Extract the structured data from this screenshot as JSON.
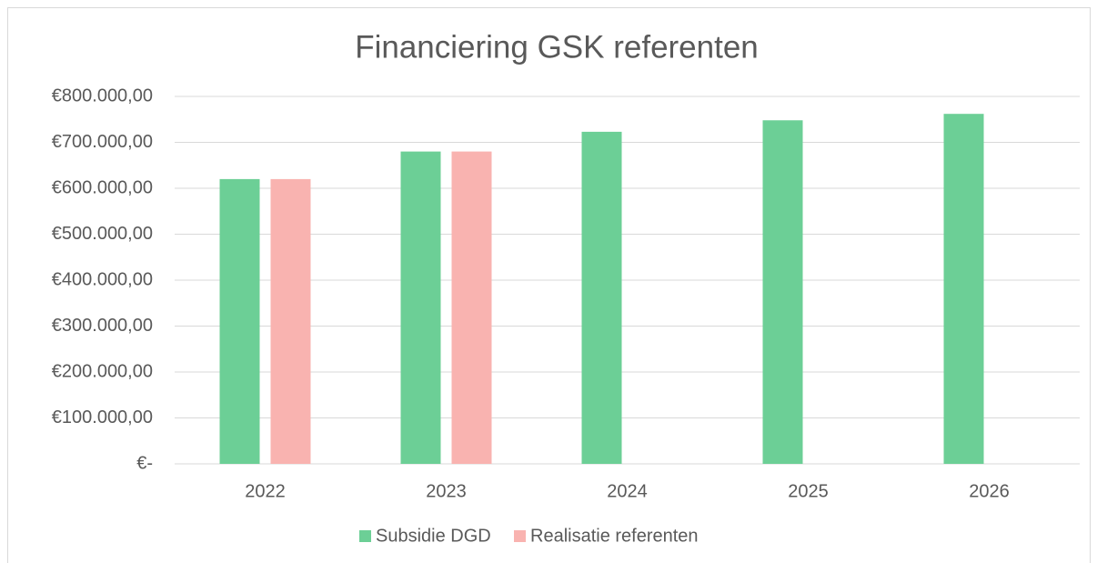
{
  "chart_data": {
    "type": "bar",
    "title": "Financiering GSK referenten",
    "categories": [
      "2022",
      "2023",
      "2024",
      "2025",
      "2026"
    ],
    "series": [
      {
        "name": "Subsidie DGD",
        "color": "#6ccf96",
        "values": [
          620000,
          680000,
          723000,
          748000,
          762000
        ]
      },
      {
        "name": "Realisatie referenten",
        "color": "#f9b3b0",
        "values": [
          620000,
          680000,
          null,
          null,
          null
        ]
      }
    ],
    "ylim": [
      0,
      800000
    ],
    "yticks": [
      {
        "value": 0,
        "label": "€-"
      },
      {
        "value": 100000,
        "label": "€100.000,00"
      },
      {
        "value": 200000,
        "label": "€200.000,00"
      },
      {
        "value": 300000,
        "label": "€300.000,00"
      },
      {
        "value": 400000,
        "label": "€400.000,00"
      },
      {
        "value": 500000,
        "label": "€500.000,00"
      },
      {
        "value": 600000,
        "label": "€600.000,00"
      },
      {
        "value": 700000,
        "label": "€700.000,00"
      },
      {
        "value": 800000,
        "label": "€800.000,00"
      }
    ],
    "grid": true,
    "legend": "bottom"
  }
}
